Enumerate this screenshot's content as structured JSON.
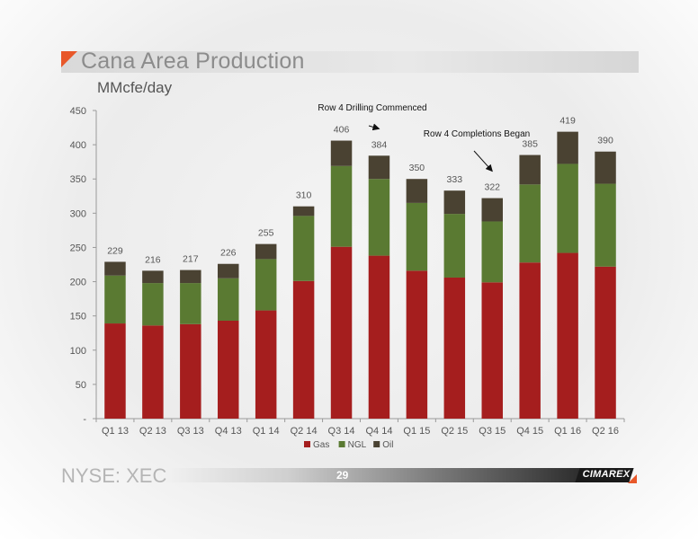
{
  "slide": {
    "title": "Cana Area Production",
    "subtitle": "MMcfe/day",
    "footer_ticker": "NYSE: XEC",
    "page_number": "29",
    "logo_text": "CIMAREX",
    "colors": {
      "accent": "#e8582a",
      "title_text": "#8c8c8c"
    }
  },
  "chart_data": {
    "type": "bar",
    "stacked": true,
    "categories": [
      "Q1 13",
      "Q2 13",
      "Q3 13",
      "Q4 13",
      "Q1 14",
      "Q2 14",
      "Q3 14",
      "Q4 14",
      "Q1 15",
      "Q2 15",
      "Q3 15",
      "Q4 15",
      "Q1 16",
      "Q2 16"
    ],
    "series": [
      {
        "name": "Gas",
        "color": "#a51e1e",
        "values": [
          139,
          136,
          138,
          143,
          158,
          201,
          251,
          238,
          216,
          206,
          199,
          228,
          242,
          222
        ]
      },
      {
        "name": "NGL",
        "color": "#5a7a32",
        "values": [
          70,
          62,
          60,
          62,
          75,
          95,
          118,
          112,
          99,
          93,
          89,
          114,
          130,
          121
        ]
      },
      {
        "name": "Oil",
        "color": "#4a4232",
        "values": [
          20,
          18,
          19,
          21,
          22,
          14,
          37,
          34,
          35,
          34,
          34,
          43,
          47,
          47
        ]
      }
    ],
    "totals": [
      "229",
      "216",
      "217",
      "226",
      "255",
      "310",
      "406",
      "384",
      "350",
      "333",
      "322",
      "385",
      "419",
      "390"
    ],
    "ylim": [
      0,
      450
    ],
    "yticks": [
      0,
      50,
      100,
      150,
      200,
      250,
      300,
      350,
      400,
      450
    ],
    "ytick_labels": [
      "-",
      "50",
      "100",
      "150",
      "200",
      "250",
      "300",
      "350",
      "400",
      "450"
    ],
    "legend_position": "bottom",
    "grid": false,
    "annotations": [
      {
        "text": "Row 4 Drilling Commenced",
        "category": "Q4 14"
      },
      {
        "text": "Row 4 Completions Began",
        "category": "Q3 15"
      }
    ]
  }
}
